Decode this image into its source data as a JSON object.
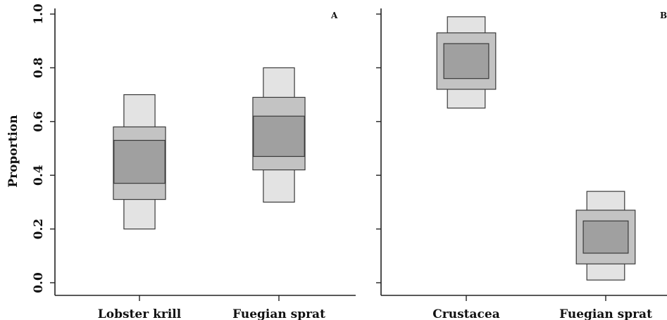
{
  "figure": {
    "ylabel": "Proportion",
    "y_ticks": [
      "0.0",
      "0.2",
      "0.4",
      "0.6",
      "0.8",
      "1.0"
    ]
  },
  "chart_data": [
    {
      "type": "box",
      "panel": "A",
      "categories": [
        "Lobster krill",
        "Fuegian sprat"
      ],
      "ylabel": "Proportion",
      "ylim": [
        0,
        1
      ],
      "intervals": [
        {
          "category": "Lobster krill",
          "outer": [
            0.2,
            0.7
          ],
          "middle": [
            0.31,
            0.58
          ],
          "inner": [
            0.37,
            0.53
          ]
        },
        {
          "category": "Fuegian sprat",
          "outer": [
            0.3,
            0.8
          ],
          "middle": [
            0.42,
            0.69
          ],
          "inner": [
            0.47,
            0.62
          ]
        }
      ]
    },
    {
      "type": "box",
      "panel": "B",
      "categories": [
        "Crustacea",
        "Fuegian sprat"
      ],
      "ylim": [
        0,
        1
      ],
      "intervals": [
        {
          "category": "Crustacea",
          "outer": [
            0.65,
            0.99
          ],
          "middle": [
            0.72,
            0.93
          ],
          "inner": [
            0.76,
            0.89
          ]
        },
        {
          "category": "Fuegian sprat",
          "outer": [
            0.01,
            0.34
          ],
          "middle": [
            0.07,
            0.27
          ],
          "inner": [
            0.11,
            0.23
          ]
        }
      ]
    }
  ],
  "colors": {
    "outer": "#e3e3e3",
    "middle": "#c3c3c3",
    "inner": "#a0a0a0",
    "stroke": "#3a3a3a",
    "axis": "#222222"
  }
}
